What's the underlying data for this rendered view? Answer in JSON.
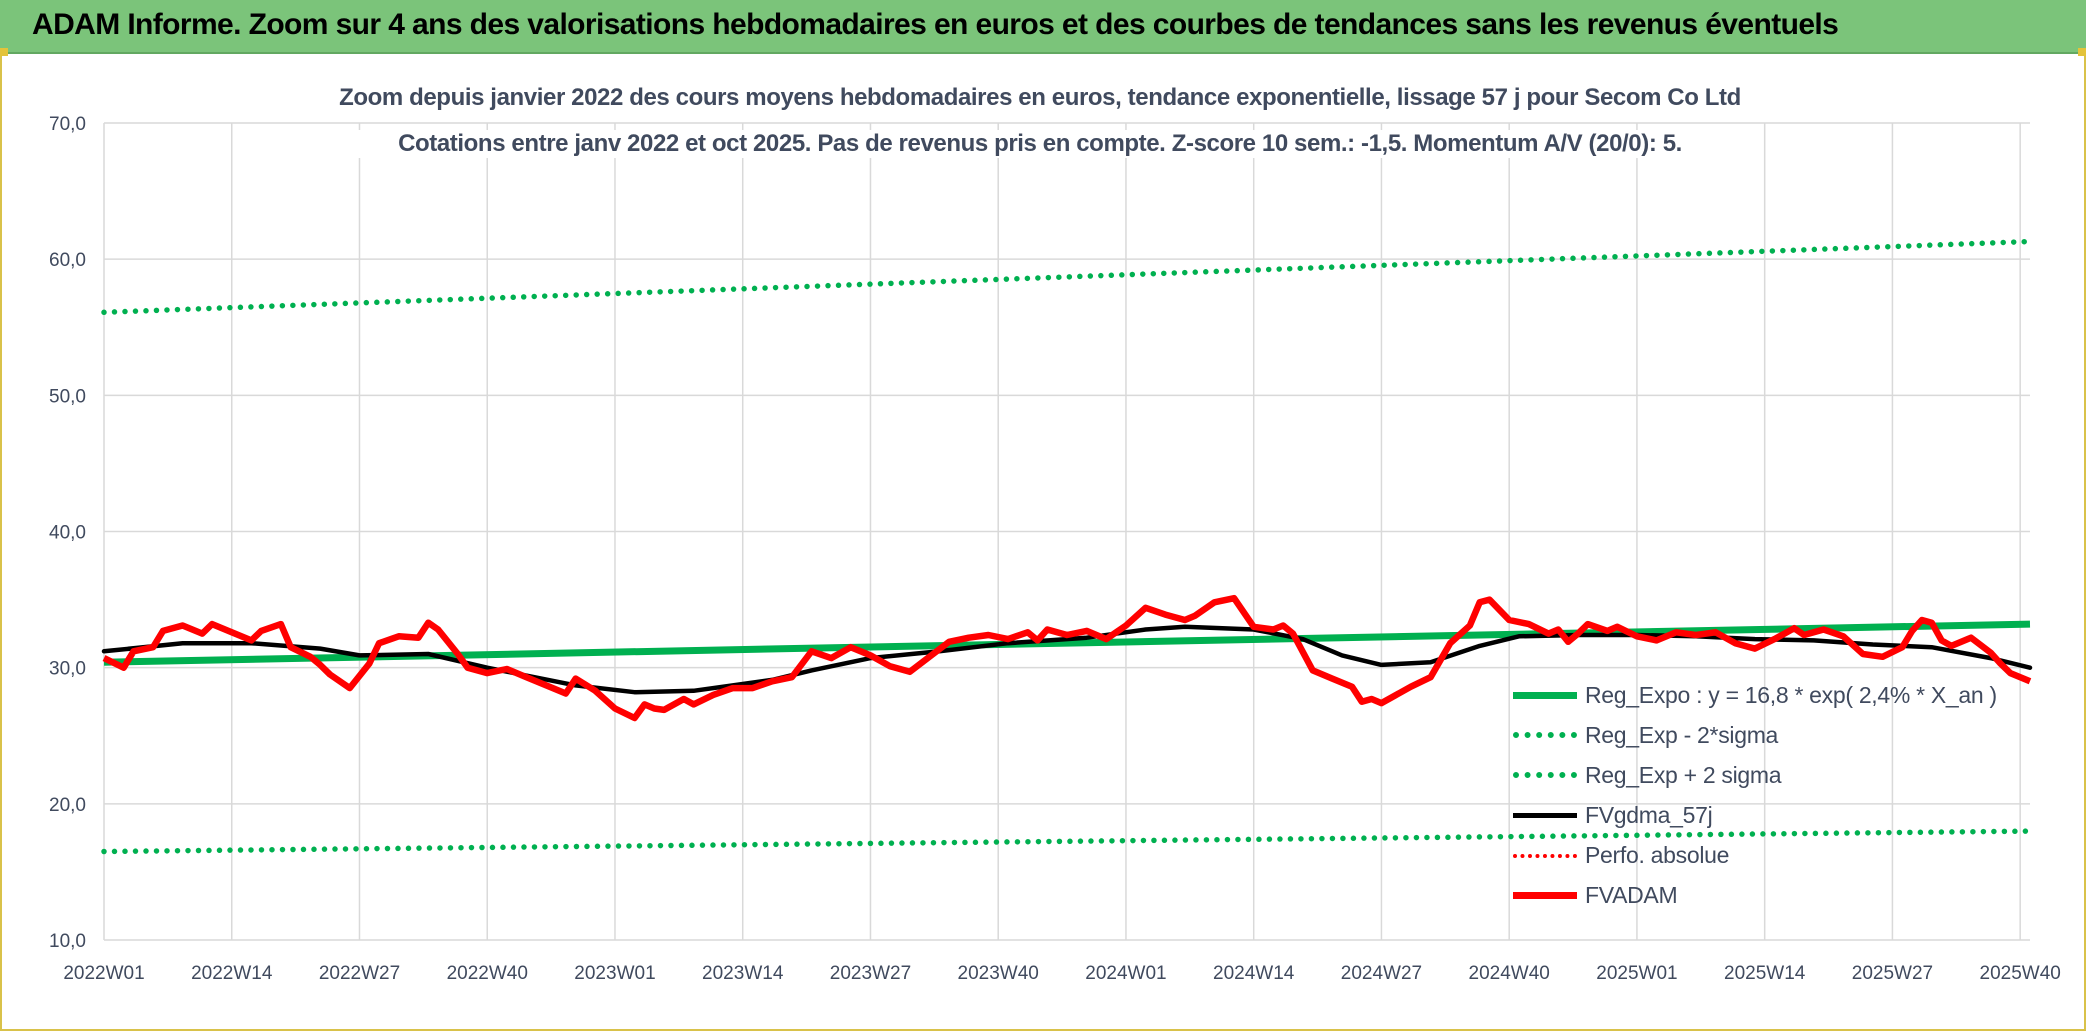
{
  "header": {
    "title": "ADAM Informe. Zoom sur 4 ans des valorisations hebdomadaires en euros et des courbes de tendances sans les revenus éventuels"
  },
  "colors": {
    "banner": "#7bc47a",
    "reg_expo": "#00b050",
    "fvgdma": "#000000",
    "fvadam": "#ff0000",
    "perfo": "#ff0000",
    "axis_text": "#404a5e",
    "grid": "#d9d9d9"
  },
  "chart_data": {
    "type": "line",
    "title": "Zoom depuis janvier 2022 des cours moyens hebdomadaires en euros, tendance exponentielle, lissage 57 j pour Secom Co Ltd",
    "subtitle": "Cotations entre janv 2022 et oct 2025. Pas de revenus pris en compte. Z-score 10 sem.: -1,5. Momentum A/V (20/0): 5.",
    "xlabel": "",
    "ylabel": "",
    "ylim": [
      10,
      70
    ],
    "yticks": [
      "10,0",
      "20,0",
      "30,0",
      "40,0",
      "50,0",
      "60,0",
      "70,0"
    ],
    "x_range_weeks": [
      0,
      196
    ],
    "xticks": [
      {
        "label": "2022W01",
        "week": 0
      },
      {
        "label": "2022W14",
        "week": 13
      },
      {
        "label": "2022W27",
        "week": 26
      },
      {
        "label": "2022W40",
        "week": 39
      },
      {
        "label": "2023W01",
        "week": 52
      },
      {
        "label": "2023W14",
        "week": 65
      },
      {
        "label": "2023W27",
        "week": 78
      },
      {
        "label": "2023W40",
        "week": 91
      },
      {
        "label": "2024W01",
        "week": 104
      },
      {
        "label": "2024W14",
        "week": 117
      },
      {
        "label": "2024W27",
        "week": 130
      },
      {
        "label": "2024W40",
        "week": 143
      },
      {
        "label": "2025W01",
        "week": 156
      },
      {
        "label": "2025W14",
        "week": 169
      },
      {
        "label": "2025W27",
        "week": 182
      },
      {
        "label": "2025W40",
        "week": 195
      }
    ],
    "grid": true,
    "legend_position": "bottom-right",
    "series": [
      {
        "name": "Reg_Expo : y = 16,8 * exp( 2,4% *  X_an )",
        "style": "solid-thick",
        "color": "#00b050",
        "points": [
          [
            0,
            30.4
          ],
          [
            196,
            33.2
          ]
        ]
      },
      {
        "name": "Reg_Exp - 2*sigma",
        "style": "dotted",
        "color": "#00b050",
        "points": [
          [
            0,
            16.5
          ],
          [
            196,
            18.0
          ]
        ]
      },
      {
        "name": "Reg_Exp + 2 sigma",
        "style": "dotted",
        "color": "#00b050",
        "points": [
          [
            0,
            56.1
          ],
          [
            196,
            61.3
          ]
        ]
      },
      {
        "name": "FVgdma_57j",
        "style": "solid",
        "color": "#000000",
        "points": [
          [
            0,
            31.2
          ],
          [
            8,
            31.8
          ],
          [
            15,
            31.8
          ],
          [
            22,
            31.4
          ],
          [
            26,
            30.9
          ],
          [
            33,
            31.0
          ],
          [
            39,
            30.0
          ],
          [
            48,
            28.7
          ],
          [
            54,
            28.2
          ],
          [
            60,
            28.3
          ],
          [
            68,
            29.1
          ],
          [
            72,
            29.8
          ],
          [
            78,
            30.7
          ],
          [
            85,
            31.2
          ],
          [
            92,
            31.8
          ],
          [
            100,
            32.2
          ],
          [
            106,
            32.8
          ],
          [
            110,
            33.0
          ],
          [
            117,
            32.8
          ],
          [
            122,
            32.1
          ],
          [
            126,
            30.9
          ],
          [
            130,
            30.2
          ],
          [
            135,
            30.4
          ],
          [
            140,
            31.6
          ],
          [
            144,
            32.3
          ],
          [
            150,
            32.4
          ],
          [
            156,
            32.4
          ],
          [
            162,
            32.3
          ],
          [
            168,
            32.1
          ],
          [
            174,
            32.0
          ],
          [
            180,
            31.7
          ],
          [
            186,
            31.5
          ],
          [
            192,
            30.7
          ],
          [
            196,
            30.0
          ]
        ]
      },
      {
        "name": "Perfo. absolue",
        "style": "dotted",
        "color": "#ff0000",
        "points": []
      },
      {
        "name": "FVADAM",
        "style": "solid-thick",
        "color": "#ff0000",
        "points": [
          [
            0,
            30.7
          ],
          [
            2,
            30.0
          ],
          [
            3,
            31.2
          ],
          [
            5,
            31.5
          ],
          [
            6,
            32.7
          ],
          [
            8,
            33.1
          ],
          [
            10,
            32.5
          ],
          [
            11,
            33.2
          ],
          [
            13,
            32.6
          ],
          [
            15,
            32.0
          ],
          [
            16,
            32.7
          ],
          [
            18,
            33.2
          ],
          [
            19,
            31.5
          ],
          [
            21,
            30.8
          ],
          [
            22,
            30.2
          ],
          [
            23,
            29.5
          ],
          [
            25,
            28.5
          ],
          [
            27,
            30.3
          ],
          [
            28,
            31.8
          ],
          [
            30,
            32.3
          ],
          [
            32,
            32.2
          ],
          [
            33,
            33.3
          ],
          [
            34,
            32.8
          ],
          [
            36,
            31.0
          ],
          [
            37,
            30.0
          ],
          [
            39,
            29.6
          ],
          [
            41,
            29.9
          ],
          [
            43,
            29.3
          ],
          [
            45,
            28.7
          ],
          [
            47,
            28.1
          ],
          [
            48,
            29.2
          ],
          [
            50,
            28.3
          ],
          [
            52,
            27.0
          ],
          [
            54,
            26.3
          ],
          [
            55,
            27.3
          ],
          [
            56,
            27.0
          ],
          [
            57,
            26.9
          ],
          [
            59,
            27.7
          ],
          [
            60,
            27.3
          ],
          [
            62,
            28.0
          ],
          [
            64,
            28.5
          ],
          [
            66,
            28.5
          ],
          [
            68,
            29.0
          ],
          [
            70,
            29.3
          ],
          [
            72,
            31.2
          ],
          [
            74,
            30.7
          ],
          [
            76,
            31.5
          ],
          [
            78,
            30.9
          ],
          [
            80,
            30.1
          ],
          [
            82,
            29.7
          ],
          [
            84,
            30.8
          ],
          [
            86,
            31.9
          ],
          [
            88,
            32.2
          ],
          [
            90,
            32.4
          ],
          [
            92,
            32.1
          ],
          [
            94,
            32.6
          ],
          [
            95,
            32.0
          ],
          [
            96,
            32.8
          ],
          [
            98,
            32.4
          ],
          [
            100,
            32.7
          ],
          [
            102,
            32.1
          ],
          [
            103,
            32.6
          ],
          [
            104,
            33.1
          ],
          [
            106,
            34.4
          ],
          [
            108,
            33.9
          ],
          [
            110,
            33.5
          ],
          [
            111,
            33.8
          ],
          [
            113,
            34.8
          ],
          [
            115,
            35.1
          ],
          [
            117,
            33.0
          ],
          [
            119,
            32.8
          ],
          [
            120,
            33.1
          ],
          [
            121,
            32.5
          ],
          [
            123,
            29.8
          ],
          [
            125,
            29.2
          ],
          [
            127,
            28.6
          ],
          [
            128,
            27.5
          ],
          [
            129,
            27.7
          ],
          [
            130,
            27.4
          ],
          [
            131,
            27.8
          ],
          [
            133,
            28.6
          ],
          [
            135,
            29.3
          ],
          [
            137,
            31.8
          ],
          [
            139,
            33.1
          ],
          [
            140,
            34.8
          ],
          [
            141,
            35.0
          ],
          [
            143,
            33.5
          ],
          [
            145,
            33.2
          ],
          [
            147,
            32.5
          ],
          [
            148,
            32.8
          ],
          [
            149,
            31.9
          ],
          [
            150,
            32.5
          ],
          [
            151,
            33.2
          ],
          [
            153,
            32.7
          ],
          [
            154,
            33.0
          ],
          [
            156,
            32.3
          ],
          [
            158,
            32.0
          ],
          [
            160,
            32.6
          ],
          [
            162,
            32.4
          ],
          [
            164,
            32.6
          ],
          [
            166,
            31.8
          ],
          [
            168,
            31.4
          ],
          [
            170,
            32.1
          ],
          [
            172,
            32.9
          ],
          [
            173,
            32.4
          ],
          [
            175,
            32.8
          ],
          [
            177,
            32.3
          ],
          [
            179,
            31.0
          ],
          [
            181,
            30.8
          ],
          [
            183,
            31.5
          ],
          [
            184,
            32.7
          ],
          [
            185,
            33.5
          ],
          [
            186,
            33.3
          ],
          [
            187,
            32.0
          ],
          [
            188,
            31.6
          ],
          [
            190,
            32.2
          ],
          [
            192,
            31.1
          ],
          [
            193,
            30.3
          ],
          [
            194,
            29.6
          ],
          [
            196,
            29.0
          ]
        ]
      }
    ]
  }
}
